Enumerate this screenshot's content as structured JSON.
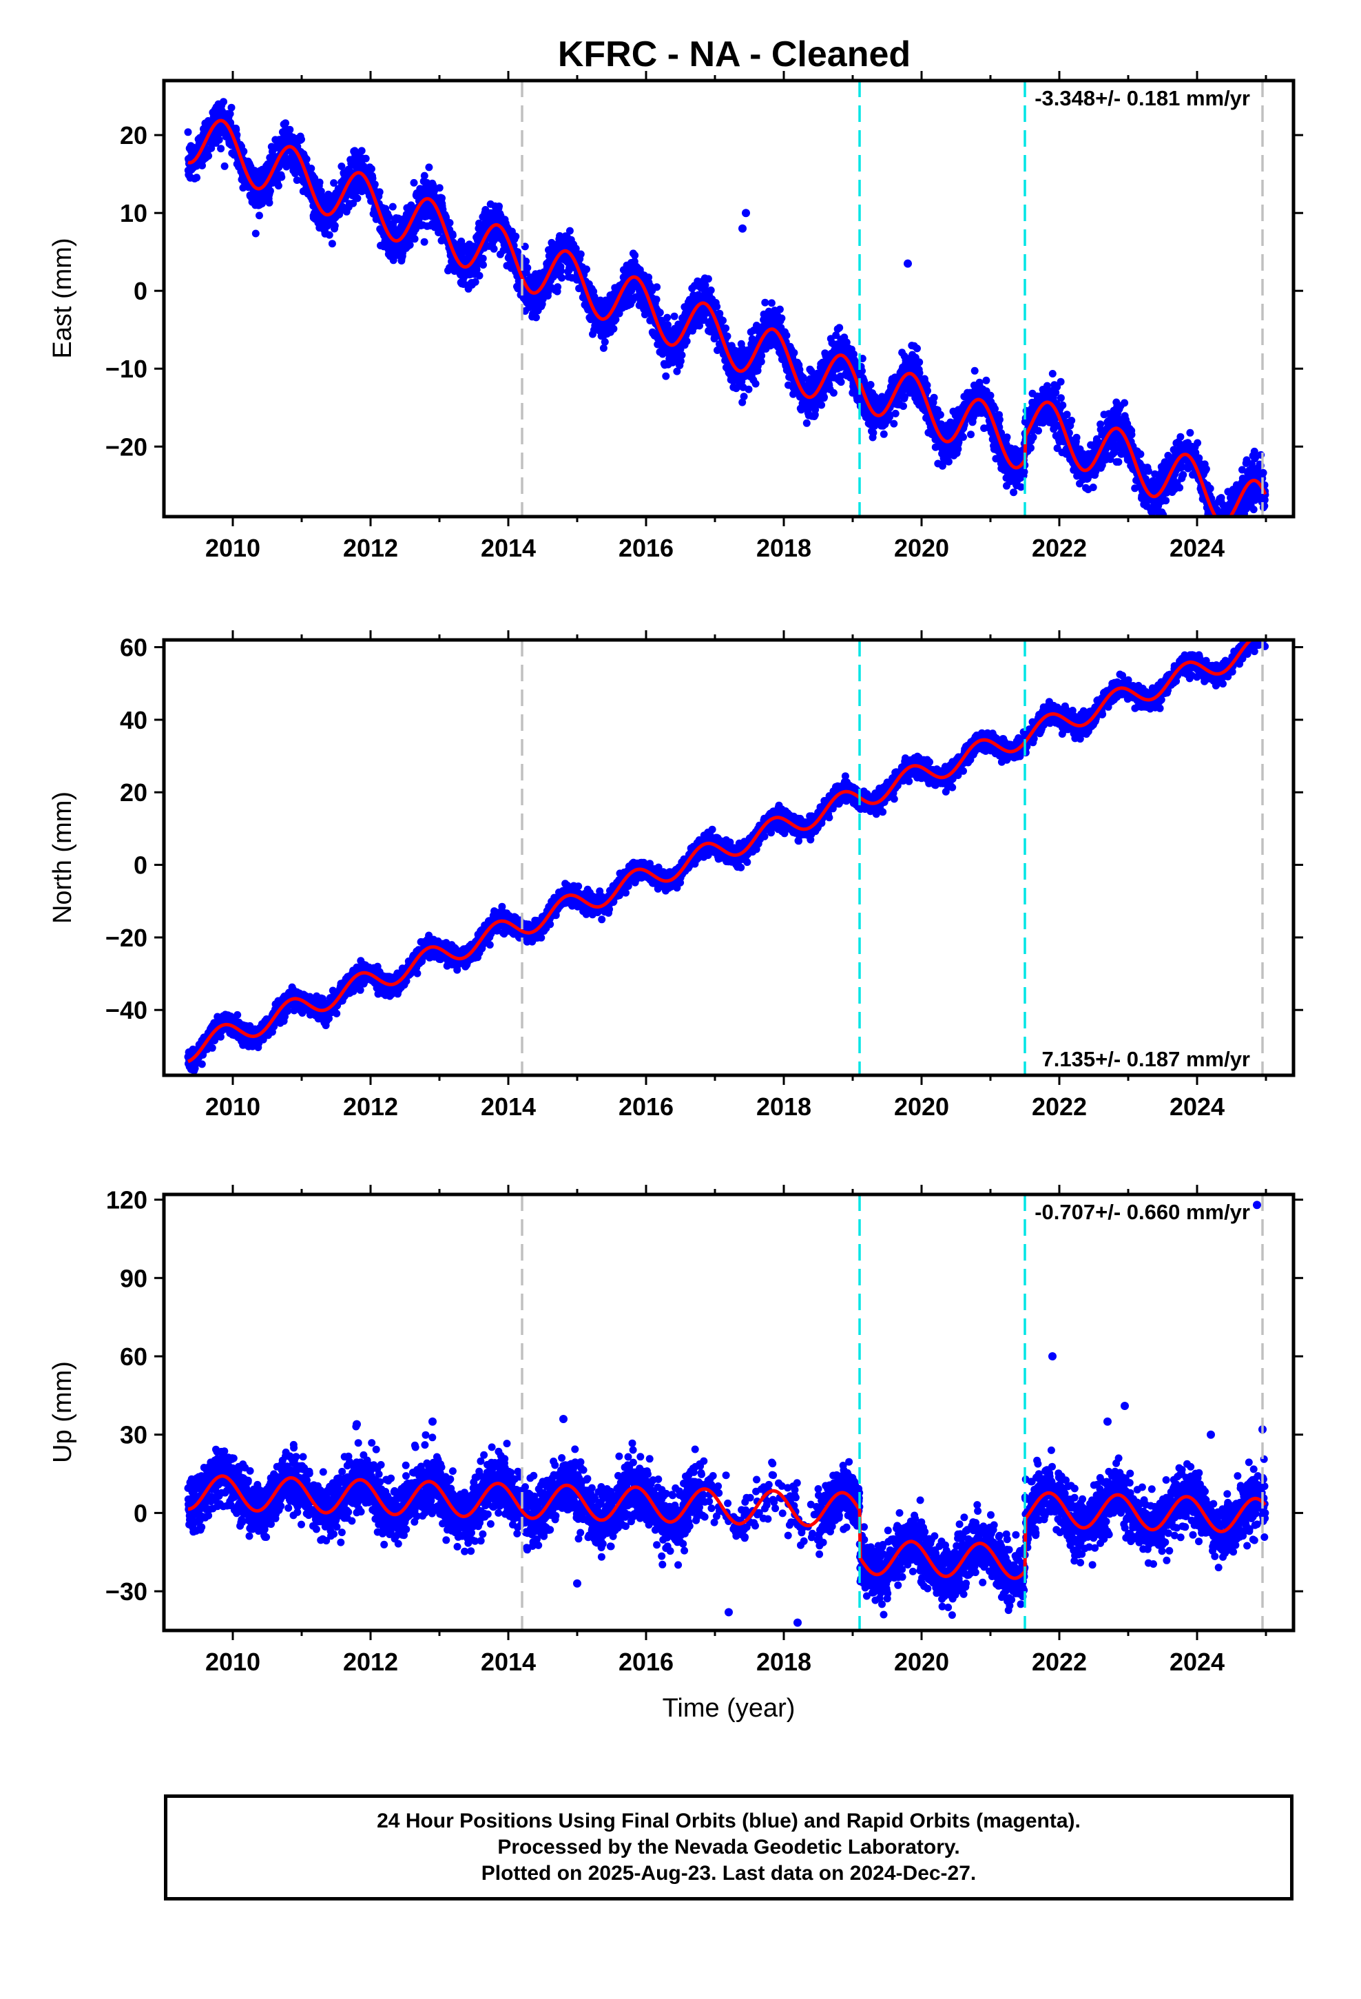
{
  "title": "KFRC  - NA - Cleaned",
  "colors": {
    "points": "#0000ff",
    "model": "#ff0000",
    "grey_line": "#c0c0c0",
    "cyan_line": "#00e5e5"
  },
  "x_axis": {
    "label": "Time (year)",
    "range": [
      2009.0,
      2025.4
    ],
    "ticks": [
      2010,
      2012,
      2014,
      2016,
      2018,
      2020,
      2022,
      2024
    ]
  },
  "vertical_lines": [
    {
      "year": 2014.2,
      "color": "grey"
    },
    {
      "year": 2019.1,
      "color": "cyan"
    },
    {
      "year": 2021.5,
      "color": "cyan"
    },
    {
      "year": 2024.95,
      "color": "grey"
    }
  ],
  "caption": {
    "line1": "24 Hour Positions Using Final Orbits (blue) and Rapid Orbits (magenta).",
    "line2": "Processed by the Nevada Geodetic Laboratory.",
    "line3": "Plotted on 2025-Aug-23. Last data on 2024-Dec-27."
  },
  "chart_data": [
    {
      "type": "scatter",
      "ylabel": "East (mm)",
      "rate_text": "-3.348+/- 0.181 mm/yr",
      "rate_position": "top-right",
      "ylim": [
        -29,
        27
      ],
      "yticks": [
        -20,
        -10,
        0,
        10,
        20
      ],
      "y_tick_labels": [
        "−20",
        "−10",
        "0",
        "10",
        "20"
      ],
      "start_year": 2009.35,
      "end_year": 2024.99,
      "rate": -3.348,
      "model_at_start": 20.0,
      "annual_amplitude": 3.5,
      "noise_std": 1.4,
      "steps": [
        {
          "year": 2019.1,
          "offset": 1.0
        },
        {
          "year": 2021.5,
          "offset": 3.0
        }
      ],
      "outliers": [
        {
          "x": 2017.45,
          "y": 10
        },
        {
          "x": 2017.4,
          "y": 8
        },
        {
          "x": 2019.8,
          "y": 3.5
        }
      ],
      "series": [
        {
          "name": "Final Orbits",
          "color": "#0000ff"
        },
        {
          "name": "Model",
          "color": "#ff0000"
        }
      ]
    },
    {
      "type": "scatter",
      "ylabel": "North (mm)",
      "rate_text": "7.135+/- 0.187 mm/yr",
      "rate_position": "bottom-right",
      "ylim": [
        -58,
        62
      ],
      "yticks": [
        -40,
        -20,
        0,
        20,
        40,
        60
      ],
      "y_tick_labels": [
        "−40",
        "−20",
        "0",
        "20",
        "40",
        "60"
      ],
      "start_year": 2009.35,
      "end_year": 2024.99,
      "rate": 7.135,
      "model_at_start": -51.0,
      "annual_amplitude": 3.2,
      "noise_std": 1.3,
      "steps": [],
      "outliers": [],
      "series": [
        {
          "name": "Final Orbits",
          "color": "#0000ff"
        },
        {
          "name": "Model",
          "color": "#ff0000"
        }
      ]
    },
    {
      "type": "scatter",
      "ylabel": "Up (mm)",
      "rate_text": "-0.707+/- 0.660 mm/yr",
      "rate_position": "top-right",
      "ylim": [
        -45,
        122
      ],
      "yticks": [
        -30,
        0,
        30,
        60,
        90,
        120
      ],
      "y_tick_labels": [
        "−30",
        "0",
        "30",
        "60",
        "90",
        "120"
      ],
      "start_year": 2009.35,
      "end_year": 2024.99,
      "rate": -0.707,
      "model_at_start": 8.0,
      "annual_amplitude": 6.5,
      "noise_std": 5.5,
      "steps": [
        {
          "year": 2019.1,
          "offset": -18.0
        },
        {
          "year": 2021.5,
          "offset": 20.0
        }
      ],
      "outliers": [
        {
          "x": 2024.87,
          "y": 118
        },
        {
          "x": 2021.9,
          "y": 60
        },
        {
          "x": 2022.95,
          "y": 41
        },
        {
          "x": 2022.7,
          "y": 35
        },
        {
          "x": 2014.8,
          "y": 36
        },
        {
          "x": 2012.9,
          "y": 35
        },
        {
          "x": 2018.2,
          "y": -42
        },
        {
          "x": 2017.2,
          "y": -38
        },
        {
          "x": 2015.0,
          "y": -27
        },
        {
          "x": 2024.95,
          "y": 32
        },
        {
          "x": 2024.2,
          "y": 30
        },
        {
          "x": 2011.8,
          "y": 34
        }
      ],
      "gaps": [
        [
          2016.8,
          2018.5
        ]
      ],
      "series": [
        {
          "name": "Final Orbits",
          "color": "#0000ff"
        },
        {
          "name": "Model",
          "color": "#ff0000"
        }
      ]
    }
  ]
}
